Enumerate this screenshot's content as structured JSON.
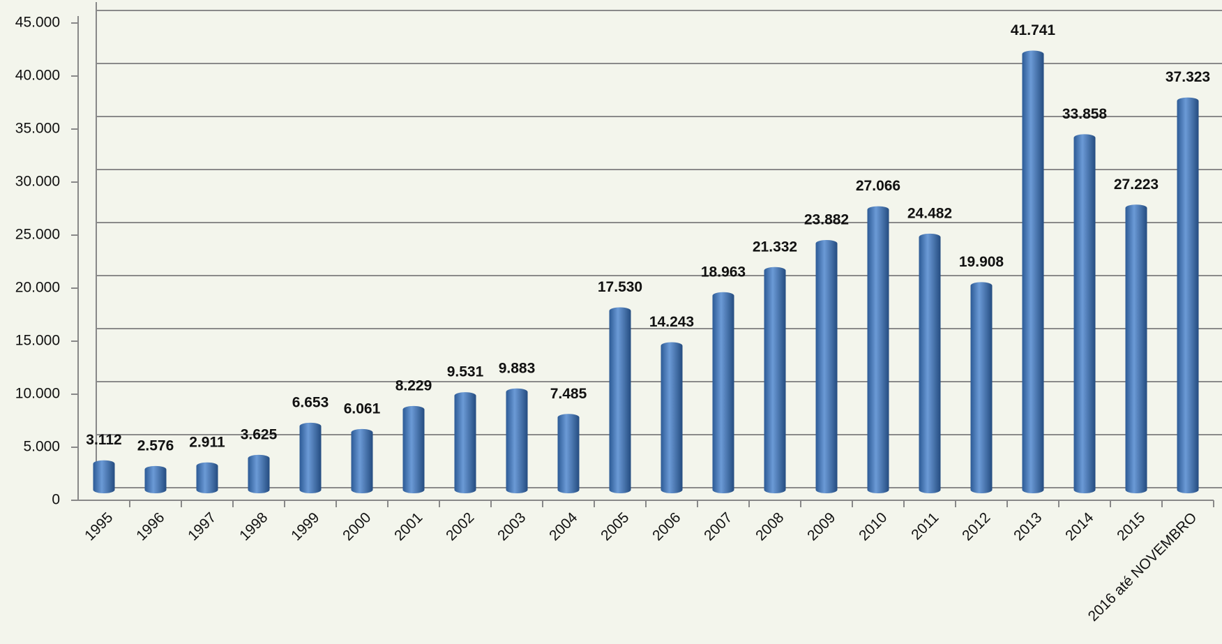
{
  "chart_data": {
    "type": "bar",
    "categories": [
      "1995",
      "1996",
      "1997",
      "1998",
      "1999",
      "2000",
      "2001",
      "2002",
      "2003",
      "2004",
      "2005",
      "2006",
      "2007",
      "2008",
      "2009",
      "2010",
      "2011",
      "2012",
      "2013",
      "2014",
      "2015",
      "2016 até NOVEMBRO"
    ],
    "values": [
      3112,
      2576,
      2911,
      3625,
      6653,
      6061,
      8229,
      9531,
      9883,
      7485,
      17530,
      14243,
      18963,
      21332,
      23882,
      27066,
      24482,
      19908,
      41741,
      33858,
      27223,
      37323
    ],
    "value_labels": [
      "3.112",
      "2.576",
      "2.911",
      "3.625",
      "6.653",
      "6.061",
      "8.229",
      "9.531",
      "9.883",
      "7.485",
      "17.530",
      "14.243",
      "18.963",
      "21.332",
      "23.882",
      "27.066",
      "24.482",
      "19.908",
      "41.741",
      "33.858",
      "27.223",
      "37.323"
    ],
    "color": "#4a7fc1",
    "ylim": [
      0,
      45000
    ],
    "yticks": [
      0,
      {
        "value": 5000,
        "label": "5.000"
      },
      {
        "value": 10000,
        "label": "10.000"
      },
      {
        "value": 15000,
        "label": "15.000"
      },
      {
        "value": 20000,
        "label": "20.000"
      },
      {
        "value": 25000,
        "label": "25.000"
      },
      {
        "value": 30000,
        "label": "30.000"
      },
      {
        "value": 35000,
        "label": "35.000"
      },
      {
        "value": 40000,
        "label": "40.000"
      },
      {
        "value": 45000,
        "label": "45.000"
      }
    ],
    "grid": true
  }
}
